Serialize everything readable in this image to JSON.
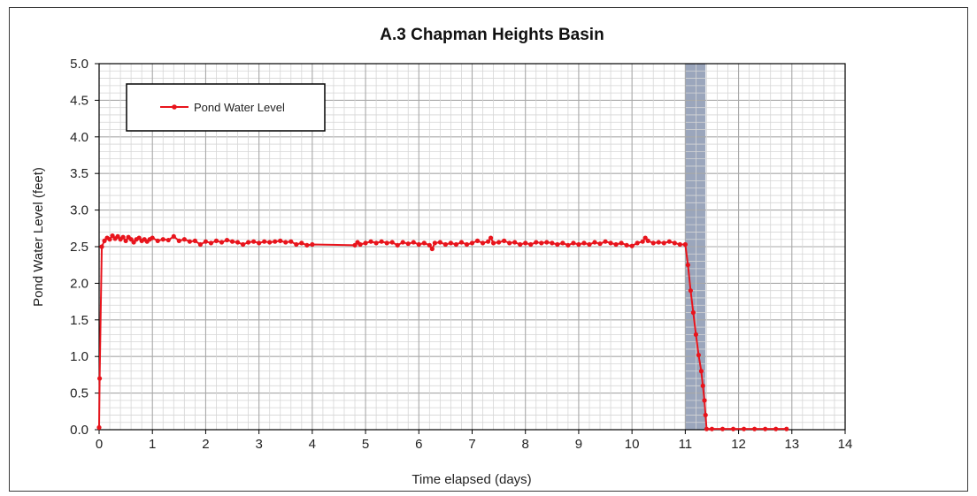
{
  "chart_data": {
    "type": "line",
    "title": "A.3 Chapman Heights Basin",
    "xlabel": "Time elapsed (days)",
    "ylabel": "Pond Water Level (feet)",
    "xlim": [
      0,
      14
    ],
    "ylim": [
      0,
      5
    ],
    "x_ticks": [
      "0",
      "1",
      "2",
      "3",
      "4",
      "5",
      "6",
      "7",
      "8",
      "9",
      "10",
      "11",
      "12",
      "13",
      "14"
    ],
    "y_ticks": [
      "0.0",
      "0.5",
      "1.0",
      "1.5",
      "2.0",
      "2.5",
      "3.0",
      "3.5",
      "4.0",
      "4.5",
      "5.0"
    ],
    "grid": true,
    "legend": {
      "position": "top-left",
      "entries": [
        "Pond Water Level"
      ]
    },
    "shaded_band": {
      "x_start": 11.0,
      "x_end": 11.38,
      "color": "#8a96b0"
    },
    "series": [
      {
        "name": "Pond Water Level",
        "color": "#e8141c",
        "points": [
          [
            0.0,
            0.03
          ],
          [
            0.01,
            0.7
          ],
          [
            0.05,
            2.5
          ],
          [
            0.1,
            2.58
          ],
          [
            0.15,
            2.62
          ],
          [
            0.2,
            2.6
          ],
          [
            0.25,
            2.65
          ],
          [
            0.3,
            2.61
          ],
          [
            0.35,
            2.64
          ],
          [
            0.4,
            2.6
          ],
          [
            0.45,
            2.63
          ],
          [
            0.5,
            2.58
          ],
          [
            0.55,
            2.63
          ],
          [
            0.6,
            2.6
          ],
          [
            0.65,
            2.56
          ],
          [
            0.7,
            2.6
          ],
          [
            0.75,
            2.62
          ],
          [
            0.8,
            2.58
          ],
          [
            0.85,
            2.6
          ],
          [
            0.9,
            2.57
          ],
          [
            0.95,
            2.6
          ],
          [
            1.0,
            2.62
          ],
          [
            1.1,
            2.58
          ],
          [
            1.2,
            2.6
          ],
          [
            1.3,
            2.59
          ],
          [
            1.4,
            2.64
          ],
          [
            1.5,
            2.58
          ],
          [
            1.6,
            2.6
          ],
          [
            1.7,
            2.57
          ],
          [
            1.8,
            2.58
          ],
          [
            1.9,
            2.53
          ],
          [
            2.0,
            2.57
          ],
          [
            2.1,
            2.55
          ],
          [
            2.2,
            2.58
          ],
          [
            2.3,
            2.56
          ],
          [
            2.4,
            2.59
          ],
          [
            2.5,
            2.57
          ],
          [
            2.6,
            2.56
          ],
          [
            2.7,
            2.53
          ],
          [
            2.8,
            2.56
          ],
          [
            2.9,
            2.57
          ],
          [
            3.0,
            2.55
          ],
          [
            3.1,
            2.57
          ],
          [
            3.2,
            2.56
          ],
          [
            3.3,
            2.57
          ],
          [
            3.4,
            2.58
          ],
          [
            3.5,
            2.56
          ],
          [
            3.6,
            2.57
          ],
          [
            3.7,
            2.53
          ],
          [
            3.8,
            2.55
          ],
          [
            3.9,
            2.52
          ],
          [
            4.0,
            2.53
          ],
          [
            4.8,
            2.52
          ],
          [
            4.85,
            2.56
          ],
          [
            4.9,
            2.53
          ],
          [
            5.0,
            2.55
          ],
          [
            5.1,
            2.57
          ],
          [
            5.2,
            2.55
          ],
          [
            5.3,
            2.57
          ],
          [
            5.4,
            2.55
          ],
          [
            5.5,
            2.56
          ],
          [
            5.6,
            2.52
          ],
          [
            5.7,
            2.56
          ],
          [
            5.8,
            2.54
          ],
          [
            5.9,
            2.56
          ],
          [
            6.0,
            2.53
          ],
          [
            6.1,
            2.55
          ],
          [
            6.2,
            2.52
          ],
          [
            6.25,
            2.47
          ],
          [
            6.3,
            2.55
          ],
          [
            6.4,
            2.56
          ],
          [
            6.5,
            2.53
          ],
          [
            6.6,
            2.55
          ],
          [
            6.7,
            2.53
          ],
          [
            6.8,
            2.56
          ],
          [
            6.9,
            2.53
          ],
          [
            7.0,
            2.55
          ],
          [
            7.1,
            2.58
          ],
          [
            7.2,
            2.55
          ],
          [
            7.3,
            2.57
          ],
          [
            7.35,
            2.62
          ],
          [
            7.4,
            2.55
          ],
          [
            7.5,
            2.56
          ],
          [
            7.6,
            2.58
          ],
          [
            7.7,
            2.55
          ],
          [
            7.8,
            2.56
          ],
          [
            7.9,
            2.53
          ],
          [
            8.0,
            2.55
          ],
          [
            8.1,
            2.53
          ],
          [
            8.2,
            2.56
          ],
          [
            8.3,
            2.55
          ],
          [
            8.4,
            2.56
          ],
          [
            8.5,
            2.55
          ],
          [
            8.6,
            2.53
          ],
          [
            8.7,
            2.55
          ],
          [
            8.8,
            2.52
          ],
          [
            8.9,
            2.55
          ],
          [
            9.0,
            2.53
          ],
          [
            9.1,
            2.55
          ],
          [
            9.2,
            2.53
          ],
          [
            9.3,
            2.56
          ],
          [
            9.4,
            2.54
          ],
          [
            9.5,
            2.57
          ],
          [
            9.6,
            2.55
          ],
          [
            9.7,
            2.53
          ],
          [
            9.8,
            2.55
          ],
          [
            9.9,
            2.52
          ],
          [
            10.0,
            2.51
          ],
          [
            10.1,
            2.55
          ],
          [
            10.2,
            2.57
          ],
          [
            10.25,
            2.62
          ],
          [
            10.3,
            2.58
          ],
          [
            10.4,
            2.55
          ],
          [
            10.5,
            2.56
          ],
          [
            10.6,
            2.55
          ],
          [
            10.7,
            2.57
          ],
          [
            10.8,
            2.55
          ],
          [
            10.9,
            2.53
          ],
          [
            11.0,
            2.53
          ],
          [
            11.05,
            2.25
          ],
          [
            11.1,
            1.9
          ],
          [
            11.15,
            1.6
          ],
          [
            11.2,
            1.3
          ],
          [
            11.25,
            1.02
          ],
          [
            11.3,
            0.8
          ],
          [
            11.33,
            0.6
          ],
          [
            11.36,
            0.4
          ],
          [
            11.38,
            0.2
          ],
          [
            11.4,
            0.01
          ],
          [
            11.5,
            0.01
          ],
          [
            11.7,
            0.01
          ],
          [
            11.9,
            0.01
          ],
          [
            12.1,
            0.01
          ],
          [
            12.3,
            0.01
          ],
          [
            12.5,
            0.01
          ],
          [
            12.7,
            0.01
          ],
          [
            12.9,
            0.01
          ]
        ]
      }
    ]
  }
}
